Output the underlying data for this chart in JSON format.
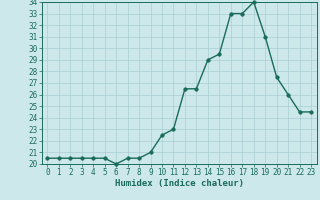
{
  "x": [
    0,
    1,
    2,
    3,
    4,
    5,
    6,
    7,
    8,
    9,
    10,
    11,
    12,
    13,
    14,
    15,
    16,
    17,
    18,
    19,
    20,
    21,
    22,
    23
  ],
  "y": [
    20.5,
    20.5,
    20.5,
    20.5,
    20.5,
    20.5,
    20.0,
    20.5,
    20.5,
    21.0,
    22.5,
    23.0,
    26.5,
    26.5,
    29.0,
    29.5,
    33.0,
    33.0,
    34.0,
    31.0,
    27.5,
    26.0,
    24.5,
    24.5
  ],
  "line_color": "#1a6b5a",
  "marker_color": "#1a6b5a",
  "bg_color": "#cce8ea",
  "grid_color": "#aacdd2",
  "xlabel": "Humidex (Indice chaleur)",
  "ylim_min": 20,
  "ylim_max": 34,
  "xlim_min": -0.5,
  "xlim_max": 23.5,
  "yticks": [
    20,
    21,
    22,
    23,
    24,
    25,
    26,
    27,
    28,
    29,
    30,
    31,
    32,
    33,
    34
  ],
  "xticks": [
    0,
    1,
    2,
    3,
    4,
    5,
    6,
    7,
    8,
    9,
    10,
    11,
    12,
    13,
    14,
    15,
    16,
    17,
    18,
    19,
    20,
    21,
    22,
    23
  ],
  "tick_fontsize": 5.5,
  "label_fontsize": 6.5,
  "marker_size": 2.5,
  "line_width": 1.0
}
